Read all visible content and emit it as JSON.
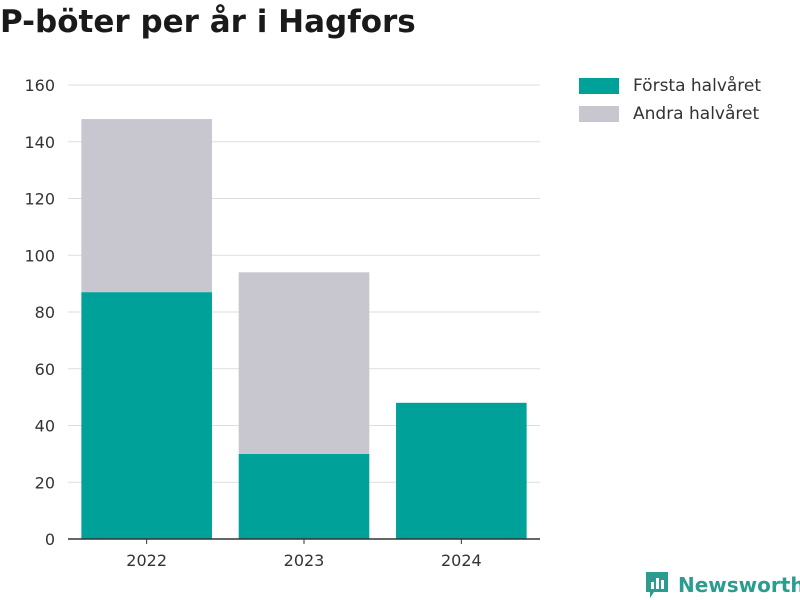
{
  "title": "P-böter per år i Hagfors",
  "colors": {
    "first_half": "#00a198",
    "second_half": "#c8c7d0",
    "brand": "#2a9d8f"
  },
  "legend": [
    {
      "label": "Första halvåret",
      "color": "#00a198"
    },
    {
      "label": "Andra halvåret",
      "color": "#c8c7d0"
    }
  ],
  "brand": {
    "name": "Newsworthy",
    "icon": "bar-chart-flag-icon"
  },
  "chart_data": {
    "type": "bar",
    "stacked": true,
    "title": "P-böter per år i Hagfors",
    "categories": [
      "2022",
      "2023",
      "2024"
    ],
    "series": [
      {
        "name": "Första halvåret",
        "values": [
          87,
          30,
          48
        ],
        "color": "#00a198"
      },
      {
        "name": "Andra halvåret",
        "values": [
          61,
          64,
          0
        ],
        "color": "#c8c7d0"
      }
    ],
    "ylim": [
      0,
      160
    ],
    "yticks": [
      0,
      20,
      40,
      60,
      80,
      100,
      120,
      140,
      160
    ],
    "grid": true,
    "legend_position": "top-right"
  }
}
